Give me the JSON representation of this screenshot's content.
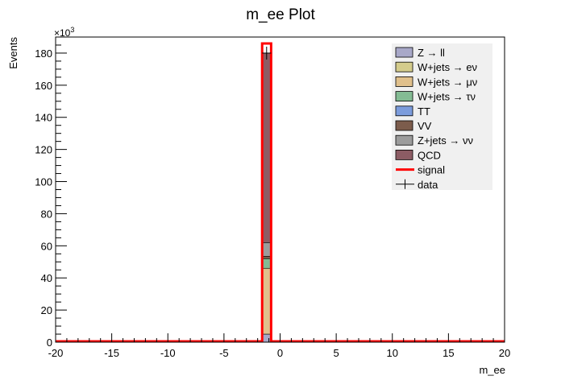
{
  "chart_data": {
    "type": "bar",
    "title": "m_ee Plot",
    "xlabel": "m_ee",
    "ylabel": "Events",
    "exponent_label": "×10",
    "exponent_power": "3",
    "xlim": [
      -20,
      20
    ],
    "ylim": [
      0,
      190000
    ],
    "x_ticks": [
      -20,
      -15,
      -10,
      -5,
      0,
      5,
      10,
      15,
      20
    ],
    "x_tick_labels": [
      "-20",
      "-15",
      "-10",
      "-5",
      "0",
      "5",
      "10",
      "15",
      "20"
    ],
    "y_ticks": [
      0,
      20000,
      40000,
      60000,
      80000,
      100000,
      120000,
      140000,
      160000,
      180000
    ],
    "y_tick_labels": [
      "0",
      "20",
      "40",
      "60",
      "80",
      "100",
      "120",
      "140",
      "160",
      "180"
    ],
    "bin": [
      -1.6,
      -0.8
    ],
    "stack": [
      {
        "name": "Z → ll",
        "value": 5000,
        "color": "#a8a8c8"
      },
      {
        "name": "W+jets → eν",
        "value": 0,
        "color": "#d4cc8c"
      },
      {
        "name": "W+jets → μν",
        "value": 41000,
        "color": "#e0c08c"
      },
      {
        "name": "W+jets → τν",
        "value": 6000,
        "color": "#84bc94"
      },
      {
        "name": "TT",
        "value": 0,
        "color": "#7c9cdc"
      },
      {
        "name": "VV",
        "value": 1500,
        "color": "#7c5c4c"
      },
      {
        "name": "Z+jets → νν",
        "value": 8500,
        "color": "#9c9c9c"
      },
      {
        "name": "QCD",
        "value": 118000,
        "color": "#8c5c64"
      }
    ],
    "signal": {
      "name": "signal",
      "value": 186000,
      "color": "#ff0000"
    },
    "data": {
      "name": "data",
      "value": 180000
    },
    "legend_position": "top-right",
    "grid": false
  }
}
